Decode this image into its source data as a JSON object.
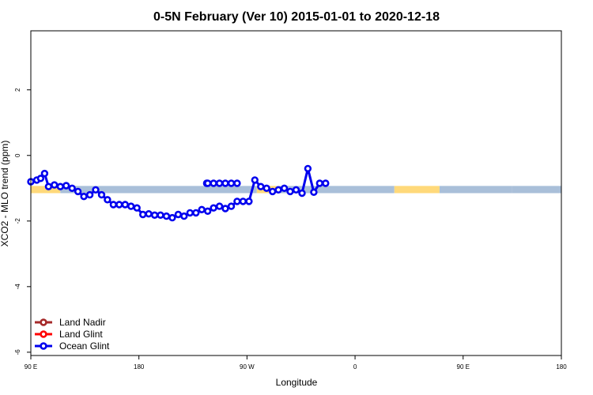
{
  "chart_data": {
    "type": "line",
    "title": "0-5N February (Ver 10)   2015-01-01 to 2020-12-18",
    "xlabel": "Longitude",
    "ylabel": "XCO2 - MLO trend (ppm)",
    "xlim": [
      -90,
      180
    ],
    "ylim": [
      -6.1,
      3.8
    ],
    "x_ticks": [
      -90,
      -35,
      20,
      75,
      130,
      180
    ],
    "x_tick_labels": [
      "90 E",
      "180",
      "90 W",
      "0",
      "90 E",
      "180"
    ],
    "y_ticks": [
      2,
      0,
      -2,
      -4,
      -6
    ],
    "y_tick_labels": [
      "2",
      "0",
      "-2",
      "-4",
      "-6"
    ],
    "grid": false,
    "legend_position": "bottom-left",
    "band": {
      "y_low": -1.15,
      "y_high": -0.93,
      "segments": [
        {
          "x0": -90,
          "x1": -75,
          "color": "#ffd97a"
        },
        {
          "x0": -75,
          "x1": 25,
          "color": "#a9bfd9"
        },
        {
          "x0": 25,
          "x1": 35,
          "color": "#ffd97a"
        },
        {
          "x0": 35,
          "x1": 95,
          "color": "#a9bfd9"
        },
        {
          "x0": 95,
          "x1": 118,
          "color": "#ffd97a"
        },
        {
          "x0": 118,
          "x1": 155,
          "color": "#a9bfd9"
        },
        {
          "x0": 155,
          "x1": 180,
          "color": "#a9bfd9"
        }
      ]
    },
    "series": [
      {
        "name": "Ocean Glint",
        "color": "#0000ee",
        "x": [
          -90,
          -87,
          -85,
          -83,
          -81,
          -78,
          -75,
          -72,
          -69,
          -66,
          -63,
          -60,
          -57,
          -54,
          -51,
          -48,
          -45,
          -42,
          -39,
          -36,
          -33,
          -30,
          -27,
          -24,
          -21,
          -18,
          -15,
          -12,
          -9,
          -6,
          -3,
          0,
          3,
          6,
          9,
          12,
          15,
          18,
          21,
          24,
          27,
          30,
          33,
          36,
          39,
          42,
          45,
          48,
          51,
          54,
          57,
          60,
          -0.5,
          0,
          3,
          6,
          9,
          12,
          15
        ],
        "y": [
          -0.8,
          -0.75,
          -0.7,
          -0.55,
          -0.95,
          -0.9,
          -0.95,
          -0.92,
          -1.0,
          -1.1,
          -1.25,
          -1.2,
          -1.05,
          -1.2,
          -1.35,
          -1.5,
          -1.5,
          -1.5,
          -1.55,
          -1.6,
          -1.8,
          -1.78,
          -1.82,
          -1.82,
          -1.85,
          -1.9,
          -1.8,
          -1.85,
          -1.75,
          -1.75,
          -1.65,
          -1.7,
          -1.6,
          -1.55,
          -1.62,
          -1.55,
          -1.4,
          -1.4,
          -1.4,
          -0.75,
          -0.95,
          -1.0,
          -1.1,
          -1.05,
          -1.0,
          -1.1,
          -1.05,
          -1.15,
          -0.4,
          -1.12,
          -0.85,
          -0.85,
          -0.85,
          -0.85,
          -0.85,
          -0.85,
          -0.85,
          -0.85,
          -0.85
        ]
      }
    ]
  },
  "legend": {
    "items": [
      {
        "name": "Land Nadir",
        "color": "#a52a2a"
      },
      {
        "name": "Land Glint",
        "color": "#ff0000"
      },
      {
        "name": "Ocean Glint",
        "color": "#0000ee"
      }
    ]
  }
}
